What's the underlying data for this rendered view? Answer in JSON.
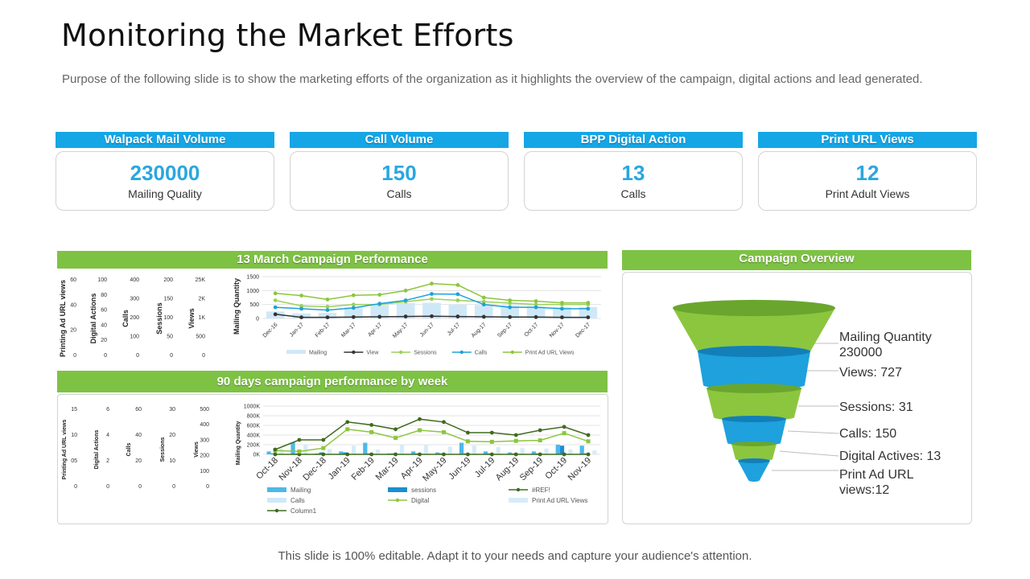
{
  "page": {
    "title": "Monitoring the Market Efforts",
    "subtitle": "Purpose of the following slide is to show the marketing efforts of the organization as it highlights the overview of the campaign, digital actions and lead generated.",
    "footer": "This slide is 100% editable. Adapt it to your needs and capture your audience's attention."
  },
  "kpis": [
    {
      "header": "Walpack Mail Volume",
      "value": "230000",
      "label": "Mailing Quality"
    },
    {
      "header": "Call Volume",
      "value": "150",
      "label": "Calls"
    },
    {
      "header": "BPP Digital Action",
      "value": "13",
      "label": "Calls"
    },
    {
      "header": "Print URL Views",
      "value": "12",
      "label": "Print Adult Views"
    }
  ],
  "colors": {
    "kpi_header": "#15a6e6",
    "green": "#7ec244",
    "kpi_value": "#2aa7df",
    "dark_green": "#3f6b1e",
    "blue": "#1ea1dc",
    "light_blue": "#b9e2f5"
  },
  "chart_data": [
    {
      "type": "line",
      "title": "13 March Campaign Performance",
      "categories": [
        "Dec-16",
        "Jan-17",
        "Feb-17",
        "Mar-17",
        "Apr-17",
        "May-17",
        "Jun-17",
        "Jul-17",
        "Aug-17",
        "Sep-17",
        "Oct-17",
        "Nov-17",
        "Dec-17"
      ],
      "ylabel": "Mailing Quantity",
      "ylim": [
        0,
        1500
      ],
      "yticks": [
        "1500",
        "1000",
        "500",
        "0"
      ],
      "side_axes": [
        {
          "label": "Printing Ad URL views",
          "ticks": [
            "60",
            "40",
            "20",
            "0"
          ]
        },
        {
          "label": "Digital Actions",
          "ticks": [
            "100",
            "80",
            "60",
            "40",
            "20",
            "0"
          ]
        },
        {
          "label": "Calls",
          "ticks": [
            "400",
            "300",
            "200",
            "100",
            "0"
          ]
        },
        {
          "label": "Sessions",
          "ticks": [
            "200",
            "150",
            "100",
            "50",
            "0"
          ]
        },
        {
          "label": "Views",
          "ticks": [
            "25K",
            "2K",
            "1K",
            "500",
            "0"
          ]
        }
      ],
      "series": [
        {
          "name": "Mailing",
          "kind": "bar",
          "values": [
            250,
            180,
            200,
            400,
            480,
            550,
            560,
            500,
            480,
            470,
            430,
            400,
            410
          ]
        },
        {
          "name": "View",
          "kind": "line",
          "values": [
            150,
            40,
            40,
            50,
            60,
            70,
            80,
            70,
            60,
            50,
            50,
            40,
            40
          ]
        },
        {
          "name": "Sessions",
          "kind": "line",
          "values": [
            650,
            450,
            420,
            500,
            500,
            600,
            700,
            650,
            600,
            550,
            500,
            500,
            500
          ]
        },
        {
          "name": "Calls",
          "kind": "line",
          "values": [
            400,
            350,
            300,
            380,
            530,
            650,
            880,
            870,
            500,
            400,
            400,
            350,
            350
          ]
        },
        {
          "name": "Print Ad URL Views",
          "kind": "line",
          "values": [
            900,
            820,
            680,
            830,
            850,
            1000,
            1250,
            1200,
            750,
            650,
            620,
            560,
            560
          ]
        }
      ]
    },
    {
      "type": "line",
      "title": "90 days campaign performance by week",
      "categories": [
        "Oct-18",
        "Nov-18",
        "Dec-18",
        "Jan-19",
        "Feb-19",
        "Mar-19",
        "Apr-19",
        "May-19",
        "Jun-19",
        "Jul-19",
        "Aug-19",
        "Sep-19",
        "Oct-19",
        "Nov-19"
      ],
      "ylabel": "Mailing Quantity",
      "ylim": [
        0,
        1000
      ],
      "yticks": [
        "1000K",
        "800K",
        "600K",
        "400K",
        "200K",
        "0K"
      ],
      "side_axes": [
        {
          "label": "Printing Ad URL views",
          "ticks": [
            "15",
            "10",
            "05",
            "0"
          ]
        },
        {
          "label": "Digital Actions",
          "ticks": [
            "6",
            "4",
            "2",
            "0"
          ]
        },
        {
          "label": "Calls",
          "ticks": [
            "60",
            "40",
            "20",
            "0"
          ]
        },
        {
          "label": "Sessions",
          "ticks": [
            "30",
            "20",
            "10",
            "0"
          ]
        },
        {
          "label": "Views",
          "ticks": [
            "500",
            "400",
            "300",
            "200",
            "100",
            "0"
          ]
        }
      ],
      "series": [
        {
          "name": "Mailing",
          "kind": "bar",
          "values": [
            60,
            250,
            20,
            60,
            240,
            20,
            60,
            40,
            240,
            60,
            40,
            60,
            200,
            180
          ]
        },
        {
          "name": "sessions",
          "kind": "bar",
          "values": [
            20,
            20,
            40,
            40,
            20,
            20,
            20,
            20,
            20,
            20,
            20,
            20,
            180,
            20
          ]
        },
        {
          "name": "#REF!",
          "kind": "line",
          "values": [
            0,
            0,
            0,
            0,
            0,
            0,
            0,
            0,
            0,
            0,
            0,
            0,
            0,
            0
          ]
        },
        {
          "name": "Calls",
          "kind": "bar",
          "values": [
            0,
            0,
            0,
            0,
            0,
            0,
            0,
            0,
            0,
            0,
            0,
            0,
            0,
            0
          ]
        },
        {
          "name": "Digital",
          "kind": "line",
          "values": [
            80,
            60,
            130,
            520,
            460,
            340,
            500,
            460,
            270,
            260,
            280,
            290,
            440,
            270
          ]
        },
        {
          "name": "Print Ad URL Views",
          "kind": "bar",
          "values": [
            120,
            200,
            110,
            180,
            100,
            200,
            200,
            160,
            180,
            150,
            130,
            120,
            100,
            80
          ]
        },
        {
          "name": "Column1",
          "kind": "line",
          "values": [
            100,
            300,
            300,
            670,
            610,
            520,
            730,
            670,
            450,
            450,
            400,
            500,
            570,
            400
          ]
        }
      ]
    },
    {
      "type": "funnel",
      "title": "Campaign Overview",
      "stages": [
        {
          "name": "Mailing Quantity",
          "value": "230000",
          "text": "Mailing Quantity 230000"
        },
        {
          "name": "Views",
          "value": "727",
          "text": "Views: 727"
        },
        {
          "name": "Sessions",
          "value": "31",
          "text": "Sessions: 31"
        },
        {
          "name": "Calls",
          "value": "150",
          "text": "Calls: 150"
        },
        {
          "name": "Digital Actives",
          "value": "13",
          "text": "Digital Actives: 13"
        },
        {
          "name": "Print Ad URL views",
          "value": "12",
          "text": "Print Ad URL views:12"
        }
      ]
    }
  ]
}
